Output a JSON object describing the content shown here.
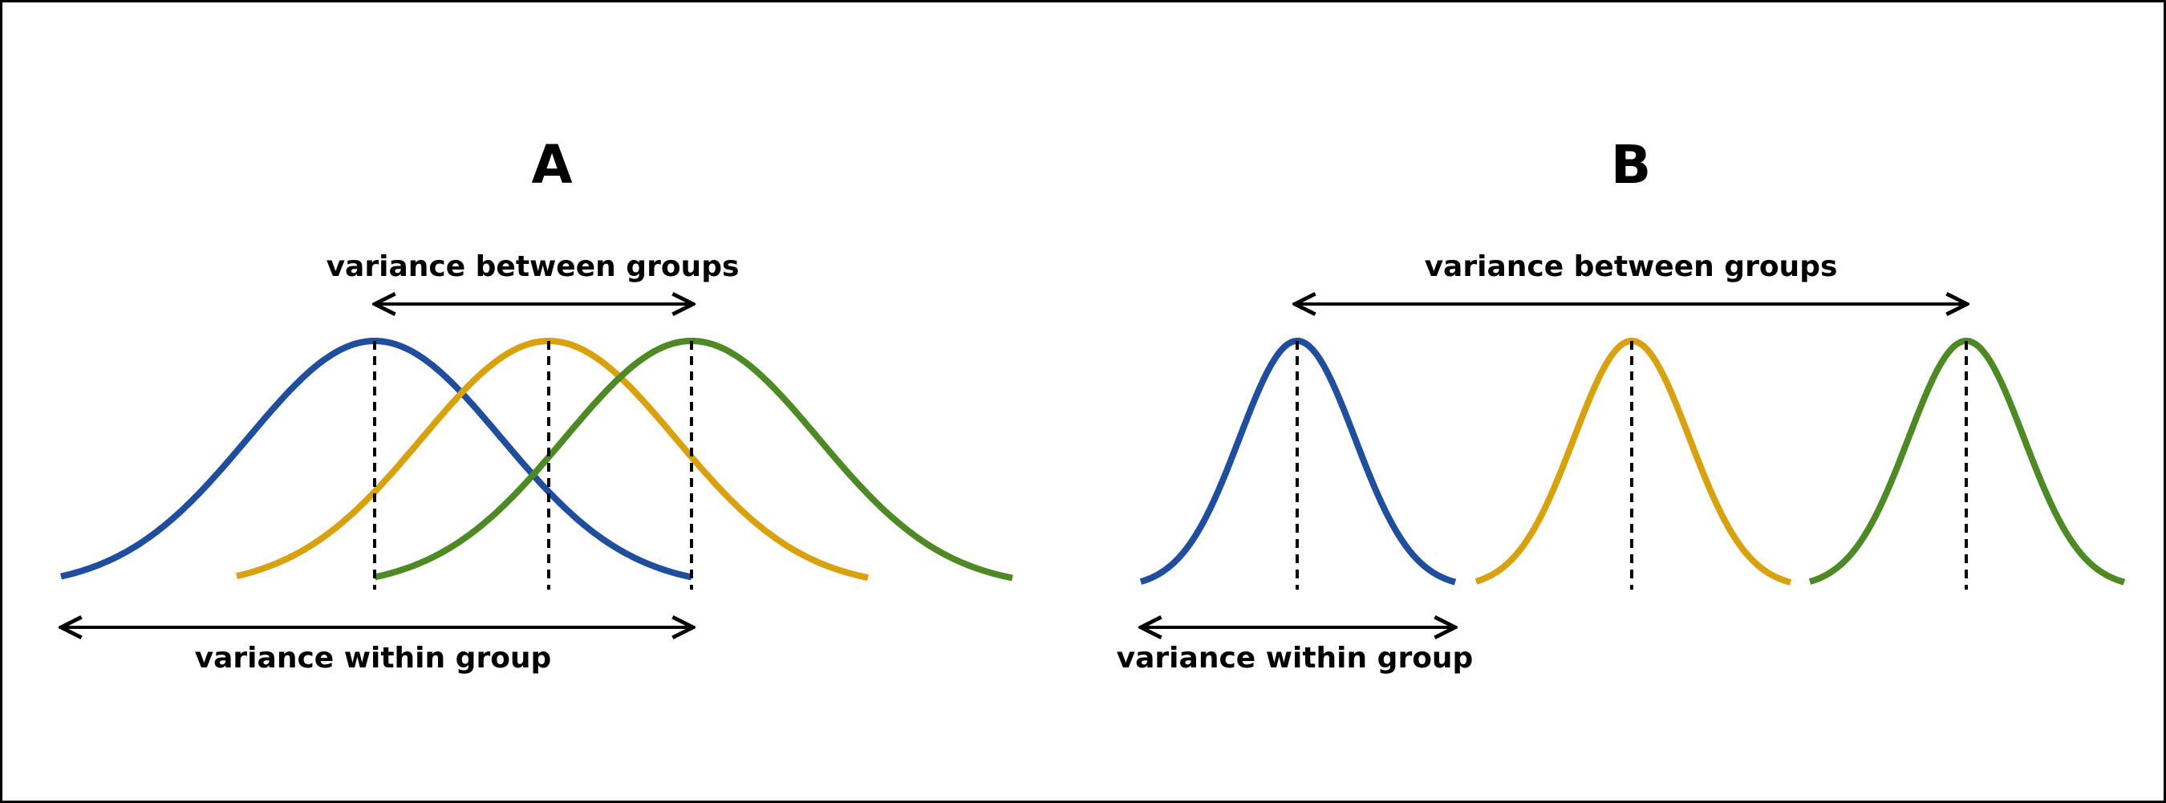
{
  "colors": {
    "border": "#000000",
    "background": "#ffffff",
    "text": "#000000"
  },
  "panels": [
    {
      "letter": "A",
      "between_label": "variance between groups",
      "within_label": "variance within group",
      "groups": [
        {
          "color": "#1f4e9e",
          "color_name": "blue"
        },
        {
          "color": "#d9a10e",
          "color_name": "yellow"
        },
        {
          "color": "#4e8a24",
          "color_name": "green"
        }
      ]
    },
    {
      "letter": "B",
      "between_label": "variance between groups",
      "within_label": "variance within group",
      "groups": [
        {
          "color": "#1f4e9e",
          "color_name": "blue"
        },
        {
          "color": "#d9a10e",
          "color_name": "yellow"
        },
        {
          "color": "#4e8a24",
          "color_name": "green"
        }
      ]
    }
  ]
}
